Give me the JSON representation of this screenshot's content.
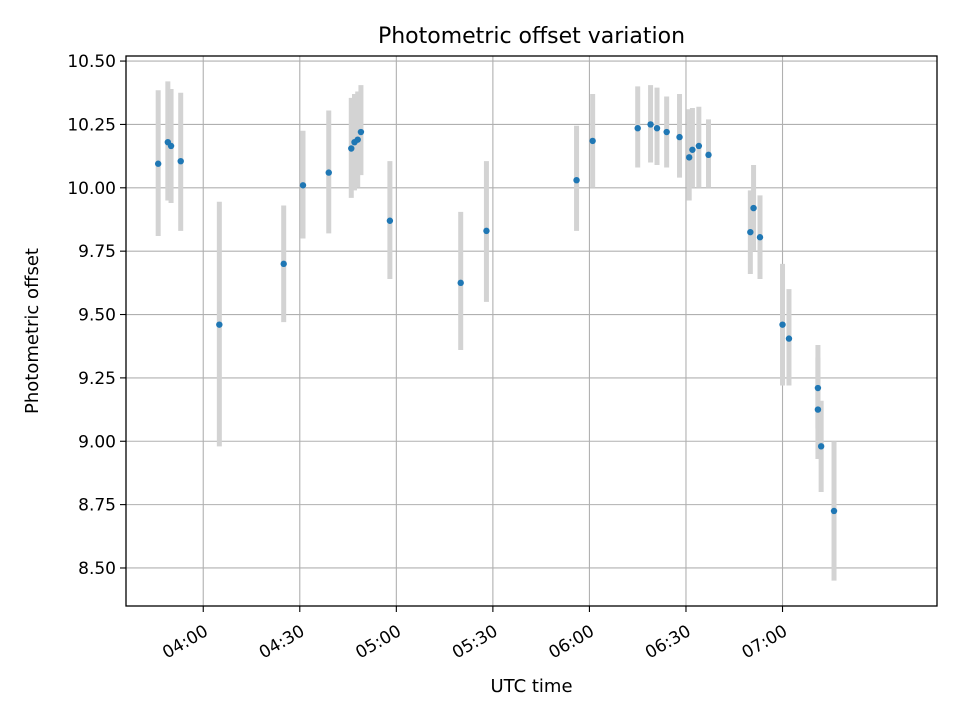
{
  "chart_data": {
    "type": "scatter",
    "title": "Photometric offset variation",
    "xlabel": "UTC time",
    "ylabel": "Photometric offset",
    "grid": true,
    "x_axis_type": "time",
    "xlim": [
      "03:36",
      "07:48"
    ],
    "ylim": [
      8.35,
      10.52
    ],
    "x_ticks": [
      "04:00",
      "04:30",
      "05:00",
      "05:30",
      "06:00",
      "06:30",
      "07:00"
    ],
    "y_ticks": [
      8.5,
      8.75,
      9.0,
      9.25,
      9.5,
      9.75,
      10.0,
      10.25,
      10.5
    ],
    "y_tick_labels": [
      "8.50",
      "8.75",
      "9.00",
      "9.25",
      "9.50",
      "9.75",
      "10.00",
      "10.25",
      "10.50"
    ],
    "colors": {
      "point": "#1f77b4",
      "errorbar": "#d3d3d3",
      "grid": "#b0b0b0",
      "axes": "#000000"
    },
    "series": [
      {
        "points": [
          {
            "x": "03:46",
            "y": 10.095,
            "low": 9.81,
            "high": 10.385
          },
          {
            "x": "03:49",
            "y": 10.18,
            "low": 9.95,
            "high": 10.42
          },
          {
            "x": "03:50",
            "y": 10.165,
            "low": 9.94,
            "high": 10.39
          },
          {
            "x": "03:53",
            "y": 10.105,
            "low": 9.83,
            "high": 10.375
          },
          {
            "x": "04:05",
            "y": 9.46,
            "low": 8.98,
            "high": 9.945
          },
          {
            "x": "04:25",
            "y": 9.7,
            "low": 9.47,
            "high": 9.93
          },
          {
            "x": "04:31",
            "y": 10.01,
            "low": 9.8,
            "high": 10.225
          },
          {
            "x": "04:39",
            "y": 10.06,
            "low": 9.82,
            "high": 10.305
          },
          {
            "x": "04:46",
            "y": 10.155,
            "low": 9.96,
            "high": 10.355
          },
          {
            "x": "04:47",
            "y": 10.18,
            "low": 9.99,
            "high": 10.37
          },
          {
            "x": "04:48",
            "y": 10.19,
            "low": 10.0,
            "high": 10.38
          },
          {
            "x": "04:49",
            "y": 10.22,
            "low": 10.05,
            "high": 10.405
          },
          {
            "x": "04:58",
            "y": 9.87,
            "low": 9.64,
            "high": 10.105
          },
          {
            "x": "05:20",
            "y": 9.625,
            "low": 9.36,
            "high": 9.905
          },
          {
            "x": "05:28",
            "y": 9.83,
            "low": 9.55,
            "high": 10.105
          },
          {
            "x": "05:56",
            "y": 10.03,
            "low": 9.83,
            "high": 10.245
          },
          {
            "x": "06:01",
            "y": 10.185,
            "low": 10.0,
            "high": 10.37
          },
          {
            "x": "06:15",
            "y": 10.235,
            "low": 10.08,
            "high": 10.4
          },
          {
            "x": "06:19",
            "y": 10.25,
            "low": 10.1,
            "high": 10.405
          },
          {
            "x": "06:21",
            "y": 10.235,
            "low": 10.09,
            "high": 10.395
          },
          {
            "x": "06:24",
            "y": 10.22,
            "low": 10.08,
            "high": 10.36
          },
          {
            "x": "06:28",
            "y": 10.2,
            "low": 10.04,
            "high": 10.37
          },
          {
            "x": "06:31",
            "y": 10.12,
            "low": 9.95,
            "high": 10.31
          },
          {
            "x": "06:32",
            "y": 10.15,
            "low": 10.0,
            "high": 10.315
          },
          {
            "x": "06:34",
            "y": 10.165,
            "low": 10.0,
            "high": 10.32
          },
          {
            "x": "06:37",
            "y": 10.13,
            "low": 10.0,
            "high": 10.27
          },
          {
            "x": "06:50",
            "y": 9.825,
            "low": 9.66,
            "high": 9.99
          },
          {
            "x": "06:51",
            "y": 9.92,
            "low": 9.75,
            "high": 10.09
          },
          {
            "x": "06:53",
            "y": 9.805,
            "low": 9.64,
            "high": 9.97
          },
          {
            "x": "07:00",
            "y": 9.46,
            "low": 9.22,
            "high": 9.7
          },
          {
            "x": "07:02",
            "y": 9.405,
            "low": 9.22,
            "high": 9.6
          },
          {
            "x": "07:11",
            "y": 9.21,
            "low": 9.05,
            "high": 9.38
          },
          {
            "x": "07:11",
            "y": 9.125,
            "low": 8.93,
            "high": 9.33
          },
          {
            "x": "07:12",
            "y": 8.98,
            "low": 8.8,
            "high": 9.16
          },
          {
            "x": "07:16",
            "y": 8.725,
            "low": 8.45,
            "high": 9.0
          }
        ]
      }
    ]
  }
}
